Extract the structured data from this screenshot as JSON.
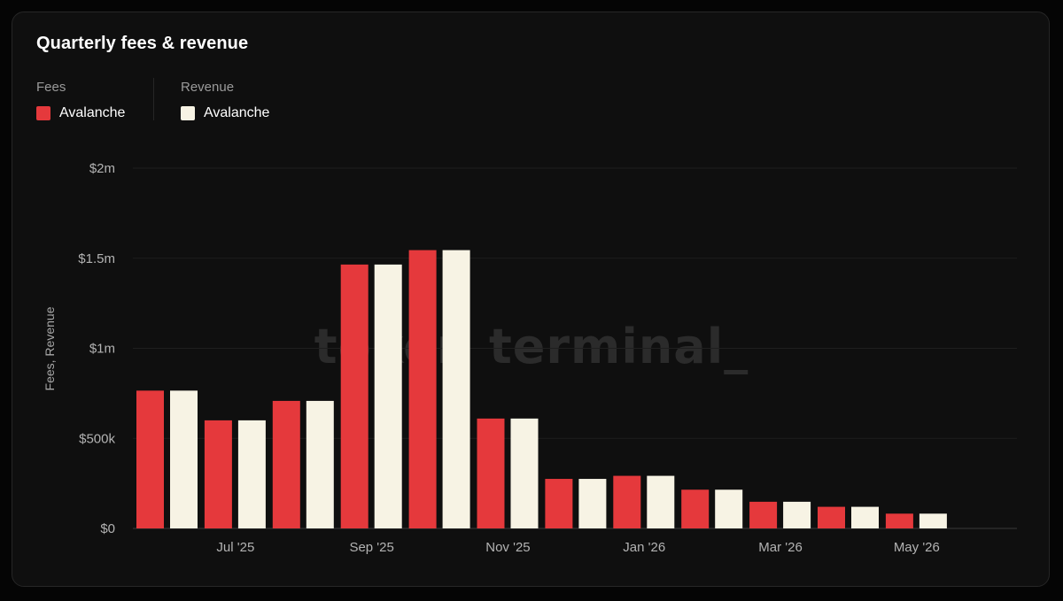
{
  "card": {
    "title": "Quarterly fees & revenue"
  },
  "legend": {
    "groups": [
      {
        "title": "Fees",
        "item": "Avalanche",
        "color": "#e5393c"
      },
      {
        "title": "Revenue",
        "item": "Avalanche",
        "color": "#f7f3e4"
      }
    ]
  },
  "watermark": "token terminal_",
  "chart_data": {
    "type": "bar",
    "title": "Quarterly fees & revenue",
    "ylabel": "Fees, Revenue",
    "xlabel": "",
    "ylim": [
      0,
      2000000
    ],
    "y_ticks": [
      {
        "value": 0,
        "label": "$0"
      },
      {
        "value": 500000,
        "label": "$500k"
      },
      {
        "value": 1000000,
        "label": "$1m"
      },
      {
        "value": 1500000,
        "label": "$1.5m"
      },
      {
        "value": 2000000,
        "label": "$2m"
      }
    ],
    "x_ticks": [
      {
        "at": 1.5,
        "label": "Jul '25"
      },
      {
        "at": 3.5,
        "label": "Sep '25"
      },
      {
        "at": 5.5,
        "label": "Nov '25"
      },
      {
        "at": 7.5,
        "label": "Jan '26"
      },
      {
        "at": 9.5,
        "label": "Mar '26"
      },
      {
        "at": 11.5,
        "label": "May '26"
      }
    ],
    "grid": true,
    "legend_position": "top-left",
    "series": [
      {
        "name": "Fees",
        "label": "Avalanche",
        "color": "#e5393c",
        "values": [
          765000,
          600000,
          708000,
          1465000,
          1545000,
          610000,
          275000,
          292000,
          215000,
          148000,
          120000,
          82000
        ]
      },
      {
        "name": "Revenue",
        "label": "Avalanche",
        "color": "#f7f3e4",
        "values": [
          765000,
          600000,
          708000,
          1465000,
          1545000,
          610000,
          275000,
          292000,
          215000,
          148000,
          120000,
          82000
        ]
      }
    ]
  }
}
